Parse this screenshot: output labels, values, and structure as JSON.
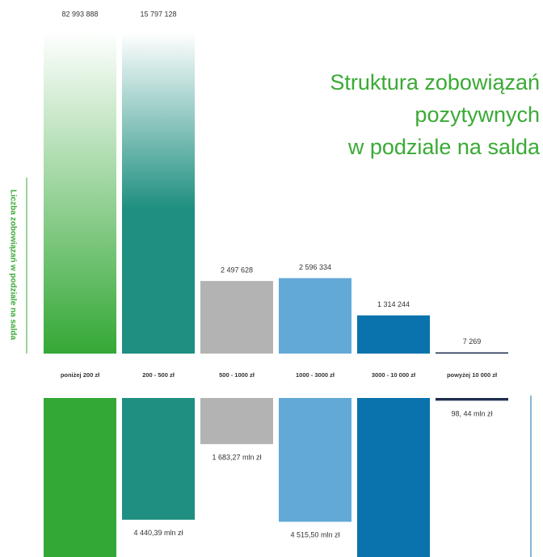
{
  "chart_data": [
    {
      "type": "bar",
      "title": [
        "Struktura zobowiązań",
        "pozytywnych",
        "w podziale na salda"
      ],
      "ylabel": "Liczba zobowiązań w podziale na salda",
      "categories": [
        "poniżej 200 zł",
        "200 - 500 zł",
        "500 - 1000 zł",
        "1000 - 3000 zł",
        "3000 - 10 000 zł",
        "powyżej 10 000 zł"
      ],
      "values": [
        82993888,
        15797128,
        2497628,
        2596334,
        1314244,
        7269
      ],
      "value_labels": [
        "82 993 888",
        "15 797 128",
        "2 497 628",
        "2 596 334",
        "1 314 244",
        "7 269"
      ],
      "colors": [
        "#34a836",
        "#1e8f80",
        "#b3b3b3",
        "#62a9d8",
        "#0a73ae",
        "#1f2e4f"
      ],
      "ylim": [
        0,
        11000000
      ]
    },
    {
      "type": "bar",
      "values": [
        6000,
        4440.39,
        1683.27,
        4515.5,
        6000,
        98.44
      ],
      "value_labels": [
        null,
        "4 440,39 mln zł",
        "1 683,27 mln zł",
        "4 515,50 mln zł",
        null,
        "98, 44 mln zł"
      ],
      "colors": [
        "#34a836",
        "#1e8f80",
        "#b3b3b3",
        "#62a9d8",
        "#0a73ae",
        "#1f2e4f"
      ],
      "ylim": [
        0,
        5800
      ]
    }
  ]
}
